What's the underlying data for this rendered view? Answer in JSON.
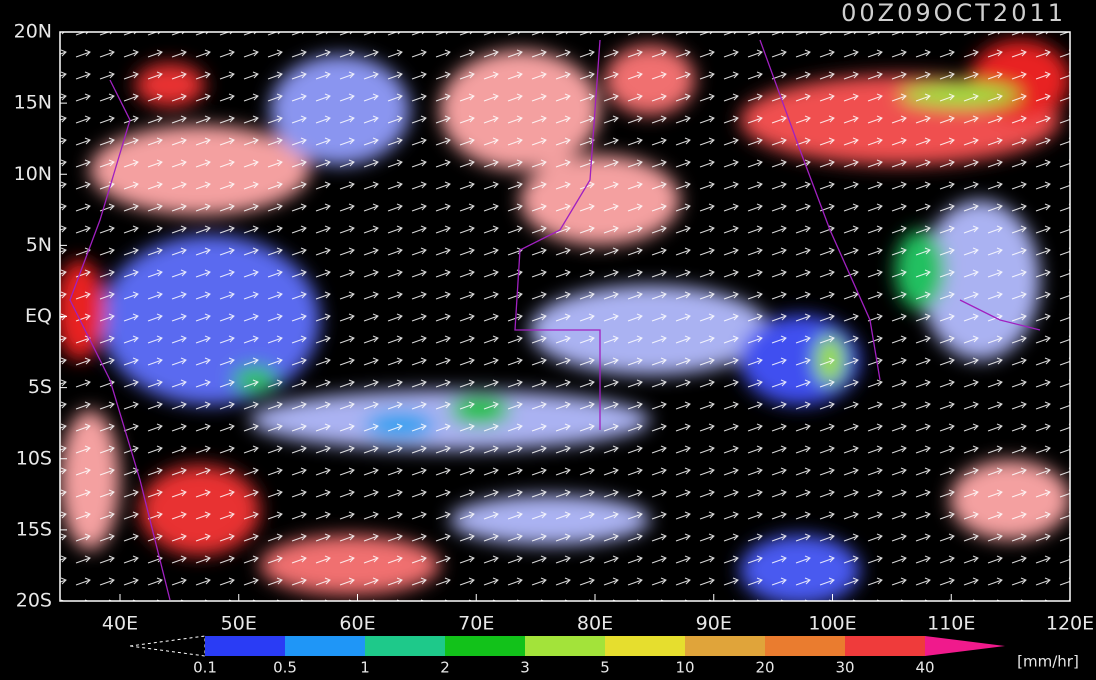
{
  "title": "00Z09OCT2011",
  "latitude_labels": [
    "20N",
    "15N",
    "10N",
    "5N",
    "EQ",
    "5S",
    "10S",
    "15S",
    "20S"
  ],
  "longitude_labels": [
    "40E",
    "50E",
    "60E",
    "70E",
    "80E",
    "90E",
    "100E",
    "110E",
    "120E"
  ],
  "colorbar": {
    "labels": [
      "0.1",
      "0.5",
      "1",
      "2",
      "3",
      "5",
      "10",
      "20",
      "30",
      "40"
    ],
    "colors": [
      "#2a3cf5",
      "#1f96f7",
      "#1ec98a",
      "#12c21a",
      "#a3e33a",
      "#e6de2e",
      "#e0a43a",
      "#ea7c2f",
      "#ef3b3b",
      "#f01a8c"
    ],
    "unit": "[mm/hr]"
  }
}
